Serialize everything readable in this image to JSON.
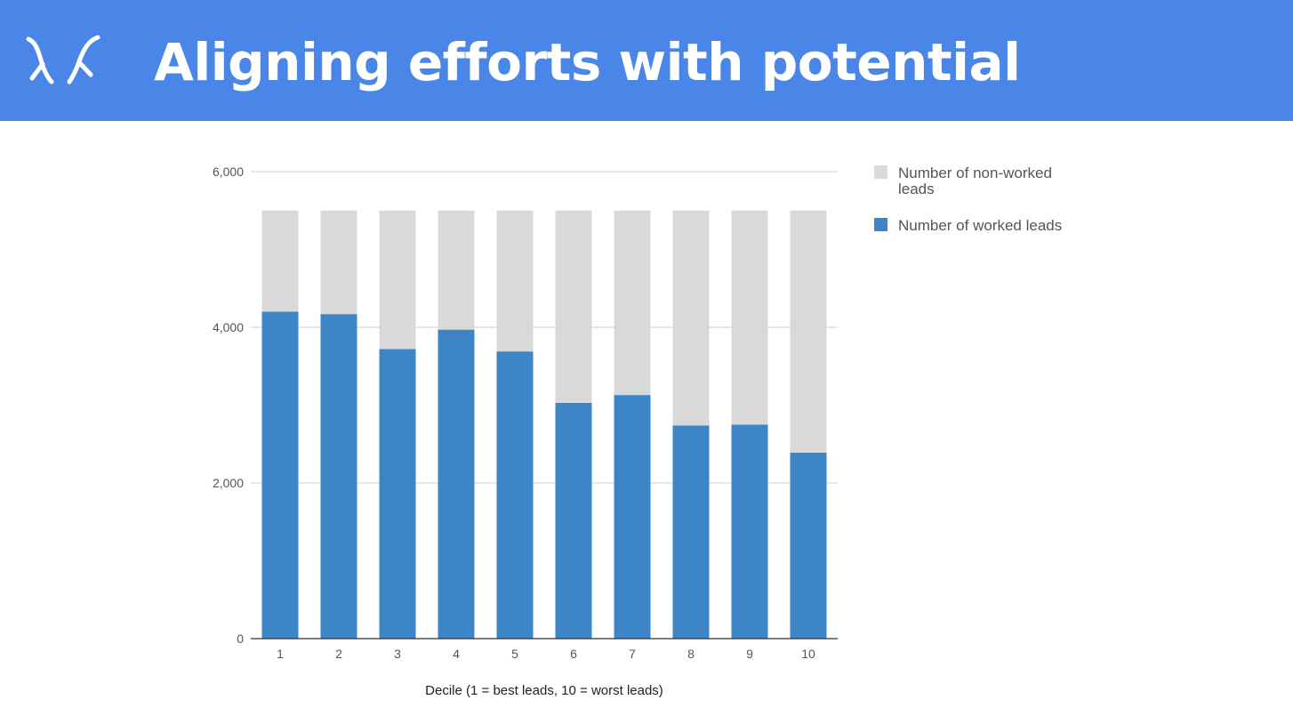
{
  "header": {
    "title": "Aligning efforts with potential",
    "logo_icon": "antlers-logo-icon",
    "background": "#4a86e8"
  },
  "chart_data": {
    "type": "bar",
    "stacked": true,
    "categories": [
      "1",
      "2",
      "3",
      "4",
      "5",
      "6",
      "7",
      "8",
      "9",
      "10"
    ],
    "series": [
      {
        "name": "Number of worked leads",
        "color": "#3d85c6",
        "values": [
          4200,
          4170,
          3720,
          3970,
          3690,
          3030,
          3130,
          2740,
          2750,
          2390
        ]
      },
      {
        "name": "Number of non-worked leads",
        "color": "#d9d9d9",
        "values": [
          1300,
          1330,
          1780,
          1530,
          1810,
          2470,
          2370,
          2760,
          2750,
          3110
        ]
      }
    ],
    "legend_order": [
      1,
      0
    ],
    "legend_labels": [
      [
        "Number of non-worked",
        "leads"
      ],
      [
        "Number of worked leads"
      ]
    ],
    "legend_position": "right",
    "xlabel": "Decile (1 = best leads, 10 = worst leads)",
    "ylabel": "",
    "ylim": [
      0,
      6000
    ],
    "yticks": [
      0,
      2000,
      4000,
      6000
    ],
    "ytick_labels": [
      "0",
      "2,000",
      "4,000",
      "6,000"
    ],
    "grid": true
  }
}
